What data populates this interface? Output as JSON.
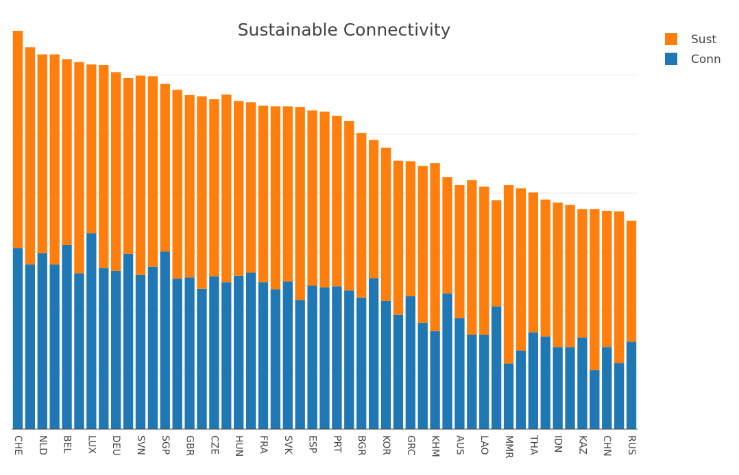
{
  "chart_data": {
    "type": "bar",
    "stacked": true,
    "title": "Sustainable Connectivity",
    "xlabel": "",
    "ylabel": "",
    "ylim": [
      0,
      6.75
    ],
    "grid": true,
    "legend_position": "top-right",
    "categories": [
      "CHE",
      "",
      "NLD",
      "",
      "BEL",
      "",
      "LUX",
      "",
      "DEU",
      "",
      "SVN",
      "",
      "SGP",
      "",
      "GBR",
      "",
      "CZE",
      "",
      "HUN",
      "",
      "FRA",
      "",
      "SVK",
      "",
      "ESP",
      "",
      "PRT",
      "",
      "BGR",
      "",
      "KOR",
      "",
      "GRC",
      "",
      "KHM",
      "",
      "AUS",
      "",
      "LAO",
      "",
      "MMR",
      "",
      "THA",
      "",
      "IDN",
      "",
      "KAZ",
      "",
      "CHN",
      "",
      "RUS"
    ],
    "series": [
      {
        "name": "Conn",
        "color": "#1f77b4",
        "values": [
          3.07,
          2.79,
          2.98,
          2.79,
          3.12,
          2.64,
          3.32,
          2.73,
          2.68,
          2.97,
          2.61,
          2.75,
          3.01,
          2.55,
          2.57,
          2.38,
          2.59,
          2.49,
          2.6,
          2.65,
          2.49,
          2.37,
          2.5,
          2.19,
          2.43,
          2.4,
          2.42,
          2.35,
          2.23,
          2.56,
          2.17,
          1.94,
          2.25,
          1.8,
          1.66,
          2.3,
          1.88,
          1.6,
          1.6,
          2.08,
          1.11,
          1.33,
          1.64,
          1.57,
          1.39,
          1.39,
          1.55,
          1.0,
          1.39,
          1.12,
          1.48
        ]
      },
      {
        "name": "Sust",
        "color": "#ff7f0e",
        "values": [
          3.68,
          3.68,
          3.37,
          3.56,
          3.15,
          3.58,
          2.86,
          3.44,
          3.37,
          2.98,
          3.38,
          3.23,
          2.84,
          3.2,
          3.09,
          3.26,
          3.0,
          3.18,
          2.96,
          2.89,
          2.99,
          3.1,
          2.97,
          3.27,
          2.97,
          2.98,
          2.89,
          2.87,
          2.79,
          2.34,
          2.6,
          2.61,
          2.29,
          2.66,
          2.85,
          1.97,
          2.26,
          2.62,
          2.51,
          1.8,
          3.03,
          2.75,
          2.37,
          2.32,
          2.45,
          2.41,
          2.18,
          2.73,
          2.31,
          2.57,
          2.05
        ]
      }
    ]
  }
}
